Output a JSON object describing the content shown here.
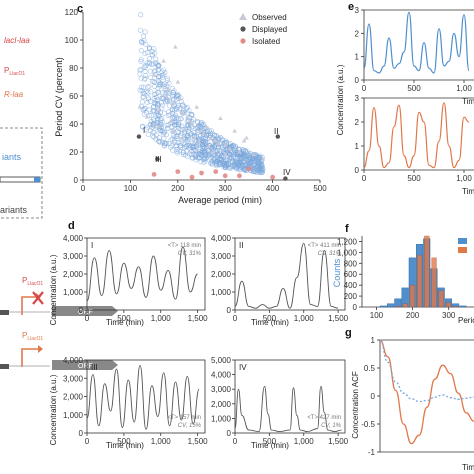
{
  "left_fragments": {
    "red_line": "lacI-laa",
    "p_luxo1_a": "P",
    "p_luxo1_a_sub": "LlacO1",
    "orange_line": "R-laa",
    "variants_a": "iants",
    "variants_b": "ariants",
    "p_luxo1_b": "P",
    "p_luxo1_b_sub": "LlacO1",
    "p_luxo1_c": "P",
    "p_luxo1_c_sub": "LlacO1",
    "orf_b": "ORF",
    "orf_c": "ORF"
  },
  "colors": {
    "blue": "#4f8fcd",
    "orange": "#e0784a",
    "gray": "#555555",
    "red": "#d64848",
    "observed_fill": "#c8c8d6",
    "scatter_blue": "#7aa7dc"
  },
  "panel_c": {
    "letter": "c",
    "legend": [
      "Observed",
      "Displayed",
      "Isolated"
    ],
    "xlabel": "Average period (min)",
    "ylabel": "Period CV (percent)",
    "xticks": [
      "0",
      "100",
      "200",
      "300",
      "400",
      "500"
    ],
    "yticks": [
      "0",
      "20",
      "40",
      "60",
      "80",
      "100",
      "120"
    ],
    "markers": [
      "I",
      "II",
      "III",
      "IV"
    ]
  },
  "panel_d": {
    "letter": "d",
    "ylabel": "Concentration (a.u.)",
    "xlabel": "Time (min)",
    "yticks": [
      "0",
      "1,000",
      "2,000",
      "3,000",
      "4,000"
    ],
    "yticks_top_right": [
      "0",
      "1,000",
      "2,000",
      "3,000",
      "4,000",
      "5,000"
    ],
    "xticks": [
      "0",
      "500",
      "1,000",
      "1,500"
    ],
    "subpanels": [
      {
        "id": "I",
        "stat_t": "<T> 118 min",
        "stat_cv": "CV, 31%"
      },
      {
        "id": "II",
        "stat_t": "<T> 411 min",
        "stat_cv": "CV, 31%"
      },
      {
        "id": "III",
        "stat_t": "<T> 157 min",
        "stat_cv": "CV, 15%"
      },
      {
        "id": "IV",
        "stat_t": "<T> 427 min",
        "stat_cv": "CV, 1%"
      }
    ]
  },
  "panel_e": {
    "letter": "e",
    "ylabel": "Concentration (a.u.)",
    "xlabel_fragment": "Tim",
    "yticks": [
      "0",
      "1",
      "2",
      "3"
    ],
    "xticks": [
      "0",
      "500",
      "1,00"
    ]
  },
  "panel_f": {
    "letter": "f",
    "ylabel": "Counts",
    "xlabel_fragment": "Perio",
    "yticks": [
      "0",
      "200",
      "400",
      "600",
      "800",
      "1,000",
      "1,200"
    ],
    "xticks": [
      "100",
      "200",
      "300"
    ]
  },
  "panel_g": {
    "letter": "g",
    "ylabel": "Concentration ACF",
    "xlabel_fragment": "Tim",
    "yticks": [
      "-1",
      "-0.5",
      "0",
      "0.5",
      "1"
    ]
  },
  "chart_data": [
    {
      "type": "scatter",
      "panel": "c",
      "xlabel": "Average period (min)",
      "ylabel": "Period CV (percent)",
      "xlim": [
        0,
        500
      ],
      "ylim": [
        0,
        120
      ],
      "legend": "top-right",
      "series": [
        {
          "name": "Observed",
          "x": [
            150,
            175,
            190,
            210,
            230,
            250,
            270,
            300,
            330,
            360,
            380,
            170,
            200,
            220,
            260,
            280,
            310,
            195,
            240,
            320,
            345,
            290,
            160,
            180,
            205,
            225,
            255,
            285,
            340,
            150,
            135,
            120,
            215,
            265,
            300,
            235,
            185,
            245,
            275,
            210,
            190,
            160
          ],
          "y": [
            75,
            60,
            55,
            48,
            40,
            35,
            30,
            25,
            20,
            18,
            15,
            85,
            70,
            45,
            38,
            28,
            22,
            95,
            52,
            35,
            30,
            44,
            50,
            65,
            58,
            42,
            33,
            26,
            28,
            40,
            45,
            52,
            36,
            24,
            18,
            30,
            42,
            27,
            20,
            30,
            35,
            38
          ]
        },
        {
          "name": "Displayed",
          "x": [
            118,
            157,
            411,
            427
          ],
          "y": [
            31,
            15,
            31,
            1
          ]
        },
        {
          "name": "Isolated",
          "x": [
            150,
            200,
            250,
            300,
            350,
            400,
            230,
            280,
            330
          ],
          "y": [
            4,
            6,
            5,
            3,
            8,
            2,
            2,
            6,
            3
          ]
        }
      ]
    },
    {
      "type": "line",
      "panel": "d-I",
      "x": [
        0,
        100,
        200,
        300,
        400,
        500,
        600,
        700,
        800,
        900,
        1000,
        1100,
        1200,
        1300,
        1400,
        1500
      ],
      "y": [
        500,
        2900,
        800,
        3300,
        900,
        2600,
        1200,
        2400,
        700,
        3000,
        1100,
        2200,
        600,
        3500,
        1000,
        2000
      ],
      "xlim": [
        0,
        1600
      ],
      "ylim": [
        0,
        4000
      ]
    },
    {
      "type": "line",
      "panel": "d-II",
      "x": [
        0,
        100,
        200,
        300,
        400,
        500,
        600,
        700,
        800,
        900,
        1000,
        1100,
        1200,
        1300,
        1400,
        1500
      ],
      "y": [
        200,
        1600,
        200,
        100,
        300,
        100,
        200,
        1200,
        100,
        1800,
        3700,
        300,
        200,
        3300,
        200,
        100
      ],
      "xlim": [
        0,
        1600
      ],
      "ylim": [
        0,
        4000
      ]
    },
    {
      "type": "line",
      "panel": "d-III",
      "x": [
        0,
        80,
        160,
        240,
        320,
        400,
        480,
        560,
        640,
        720,
        800,
        880,
        960,
        1040,
        1120,
        1200,
        1280,
        1360,
        1440,
        1520
      ],
      "y": [
        800,
        3200,
        400,
        2700,
        1200,
        3500,
        300,
        2900,
        600,
        3700,
        200,
        2600,
        900,
        3300,
        400,
        2800,
        700,
        3100,
        500,
        2400
      ],
      "xlim": [
        0,
        1600
      ],
      "ylim": [
        0,
        4000
      ]
    },
    {
      "type": "line",
      "panel": "d-IV",
      "x": [
        0,
        50,
        100,
        200,
        350,
        430,
        480,
        530,
        650,
        800,
        850,
        900,
        950,
        1050,
        1200,
        1250,
        1300,
        1350,
        1450,
        1550
      ],
      "y": [
        300,
        3000,
        1200,
        200,
        100,
        3200,
        1300,
        200,
        100,
        200,
        3100,
        1200,
        200,
        100,
        300,
        3200,
        1400,
        200,
        100,
        200
      ],
      "xlim": [
        0,
        1600
      ],
      "ylim": [
        0,
        5000
      ]
    },
    {
      "type": "line",
      "panel": "e-top",
      "x": [
        0,
        50,
        100,
        150,
        200,
        250,
        300,
        350,
        400,
        450,
        500,
        550,
        600,
        650,
        700,
        750,
        800,
        850,
        900,
        950,
        1000,
        1050
      ],
      "y": [
        0.5,
        2.4,
        0.4,
        0.3,
        0.6,
        1.8,
        0.5,
        0.7,
        1.2,
        2.9,
        0.6,
        0.4,
        1.6,
        0.5,
        0.3,
        2.2,
        0.6,
        0.8,
        2.0,
        1.0,
        2.8,
        0.4
      ],
      "xlim": [
        0,
        1100
      ],
      "ylim": [
        0,
        3
      ]
    },
    {
      "type": "line",
      "panel": "e-bottom",
      "x": [
        0,
        50,
        100,
        150,
        200,
        250,
        300,
        350,
        400,
        450,
        500,
        550,
        600,
        650,
        700,
        750,
        800,
        850,
        900,
        950,
        1000,
        1050
      ],
      "y": [
        0.1,
        0.8,
        2.6,
        1.0,
        0.1,
        0.3,
        1.8,
        2.7,
        0.6,
        0.1,
        0.6,
        2.4,
        2.0,
        0.2,
        0.1,
        1.2,
        2.8,
        1.0,
        0.1,
        0.4,
        2.2,
        2.0
      ],
      "xlim": [
        0,
        1100
      ],
      "ylim": [
        0,
        3
      ]
    },
    {
      "type": "bar",
      "panel": "f",
      "x": [
        120,
        140,
        160,
        180,
        200,
        220,
        240,
        260,
        280,
        300,
        320,
        340
      ],
      "series": [
        {
          "values": [
            20,
            60,
            150,
            350,
            900,
            1150,
            1250,
            700,
            350,
            150,
            60,
            20
          ]
        },
        {
          "values": [
            0,
            0,
            10,
            60,
            400,
            950,
            1300,
            900,
            300,
            80,
            10,
            0
          ]
        }
      ],
      "ylim": [
        0,
        1300
      ]
    },
    {
      "type": "line",
      "panel": "g",
      "x": [
        0,
        50,
        100,
        150,
        200,
        250,
        300,
        350,
        400,
        450,
        500,
        550,
        600
      ],
      "series": [
        {
          "values": [
            1,
            0.7,
            0.1,
            -0.5,
            -0.85,
            -0.7,
            -0.2,
            0.3,
            0.55,
            0.4,
            0.05,
            -0.3,
            -0.45
          ]
        },
        {
          "values": [
            1,
            0.6,
            0.25,
            0.05,
            -0.05,
            -0.1,
            -0.08,
            -0.02,
            0.02,
            -0.03,
            -0.06,
            -0.04,
            -0.02
          ]
        }
      ],
      "ylim": [
        -1,
        1
      ]
    }
  ]
}
